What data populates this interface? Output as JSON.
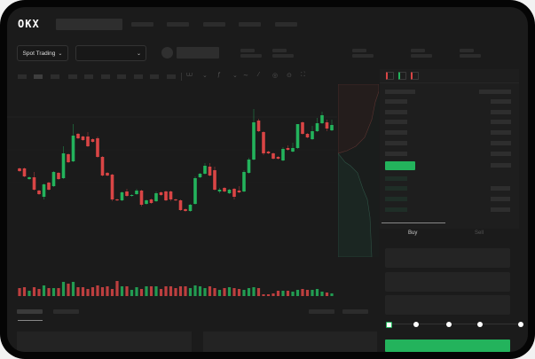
{
  "header": {
    "logo": "OKX"
  },
  "selector": {
    "market_label": "Spot Trading",
    "pair_value": ""
  },
  "trade": {
    "tabs": [
      {
        "label": "Buy",
        "active": true
      },
      {
        "label": "Sell",
        "active": false
      }
    ],
    "slider_steps": 5,
    "slider_value": 0
  },
  "colors": {
    "up": "#23b35c",
    "down": "#d94545",
    "background": "#1b1b1b",
    "accent": "#23b35c"
  },
  "chart_data": {
    "type": "candlestick",
    "candles": [
      [
        68,
        69,
        64,
        65
      ],
      [
        68,
        69,
        58,
        59
      ],
      [
        56,
        59,
        55,
        58
      ],
      [
        58,
        64,
        43,
        44
      ],
      [
        43,
        44,
        38,
        39
      ],
      [
        36,
        51,
        33,
        50
      ],
      [
        52,
        53,
        43,
        44
      ],
      [
        48,
        65,
        47,
        64
      ],
      [
        63,
        64,
        55,
        56
      ],
      [
        57,
        93,
        56,
        85
      ],
      [
        84,
        85,
        74,
        75
      ],
      [
        76,
        118,
        75,
        105
      ],
      [
        107,
        108,
        101,
        102
      ],
      [
        104,
        105,
        99,
        100
      ],
      [
        104,
        109,
        92,
        93
      ],
      [
        101,
        102,
        97,
        98
      ],
      [
        102,
        104,
        80,
        81
      ],
      [
        81,
        82,
        59,
        60
      ],
      [
        63,
        64,
        59,
        60
      ],
      [
        61,
        62,
        31,
        33
      ],
      [
        33,
        34,
        31,
        32
      ],
      [
        32,
        42,
        31,
        41
      ],
      [
        42,
        45,
        36,
        37
      ],
      [
        37,
        39,
        36,
        38
      ],
      [
        39,
        45,
        38,
        43
      ],
      [
        43,
        44,
        25,
        27
      ],
      [
        28,
        33,
        27,
        32
      ],
      [
        33,
        34,
        28,
        29
      ],
      [
        31,
        42,
        30,
        40
      ],
      [
        41,
        42,
        37,
        38
      ],
      [
        42,
        43,
        31,
        32
      ],
      [
        42,
        43,
        31,
        33
      ],
      [
        33,
        34,
        31,
        32
      ],
      [
        32,
        33,
        20,
        21
      ],
      [
        22,
        23,
        19,
        20
      ],
      [
        20,
        28,
        19,
        27
      ],
      [
        28,
        59,
        27,
        57
      ],
      [
        58,
        63,
        57,
        62
      ],
      [
        62,
        74,
        61,
        71
      ],
      [
        70,
        74,
        59,
        60
      ],
      [
        66,
        70,
        43,
        44
      ],
      [
        42,
        46,
        40,
        44
      ],
      [
        46,
        47,
        41,
        42
      ],
      [
        40,
        45,
        39,
        44
      ],
      [
        45,
        46,
        33,
        36
      ],
      [
        43,
        48,
        40,
        41
      ],
      [
        42,
        66,
        41,
        64
      ],
      [
        63,
        80,
        62,
        78
      ],
      [
        78,
        135,
        77,
        120
      ],
      [
        122,
        124,
        109,
        110
      ],
      [
        109,
        110,
        83,
        85
      ],
      [
        87,
        88,
        84,
        85
      ],
      [
        85,
        86,
        78,
        79
      ],
      [
        81,
        82,
        78,
        79
      ],
      [
        77,
        92,
        76,
        90
      ],
      [
        91,
        94,
        88,
        89
      ],
      [
        87,
        97,
        86,
        91
      ],
      [
        91,
        118,
        90,
        118
      ],
      [
        120,
        121,
        106,
        107
      ],
      [
        107,
        108,
        102,
        103
      ],
      [
        101,
        116,
        100,
        110
      ],
      [
        110,
        125,
        109,
        119
      ],
      [
        119,
        132,
        118,
        128
      ],
      [
        120,
        123,
        110,
        113
      ],
      [
        111,
        123,
        110,
        117
      ]
    ],
    "volumes": [
      9,
      10,
      6,
      10,
      8,
      12,
      9,
      9,
      9,
      16,
      14,
      16,
      10,
      10,
      8,
      10,
      12,
      10,
      11,
      8,
      17,
      11,
      11,
      7,
      10,
      8,
      11,
      11,
      11,
      8,
      11,
      11,
      9,
      11,
      11,
      9,
      12,
      11,
      9,
      11,
      9,
      7,
      9,
      10,
      9,
      8,
      7,
      9,
      10,
      9,
      2,
      2,
      3,
      6,
      6,
      6,
      5,
      7,
      8,
      7,
      7,
      8,
      5,
      4,
      3
    ]
  }
}
